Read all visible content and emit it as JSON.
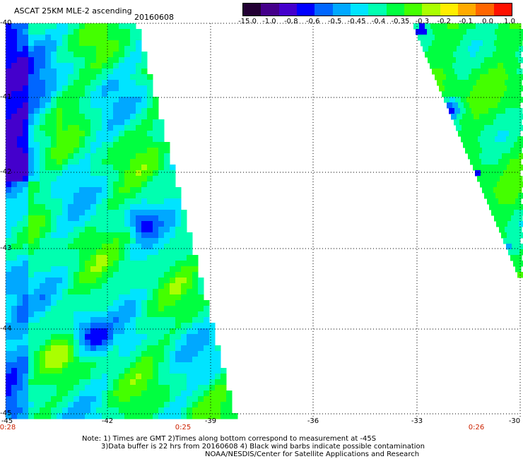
{
  "header": {
    "title": "ASCAT 25KM MLE-2 ascending",
    "date": "20160608"
  },
  "colorbar": {
    "labels": [
      "-15.0",
      "-1.0",
      "-0.8",
      "-0.6",
      "-0.5",
      "-0.45",
      "-0.4",
      "-0.35",
      "-0.3",
      "-0.2",
      "-0.1",
      "0.0",
      "1.0"
    ],
    "colors": [
      "#220033",
      "#44008a",
      "#4400cc",
      "#0000ff",
      "#0066ff",
      "#00a8ff",
      "#00e4ff",
      "#00ffb0",
      "#00ff40",
      "#44ff00",
      "#aaff00",
      "#ffee00",
      "#ffaa00",
      "#ff6600",
      "#ff1100"
    ]
  },
  "map": {
    "lat_labels": [
      "-40",
      "-41",
      "-42",
      "-43",
      "-44",
      "-45"
    ],
    "lat_values": [
      -40,
      -41,
      -42,
      -43,
      -44,
      -45
    ],
    "lon_labels": [
      "-45",
      "-42",
      "-39",
      "-36",
      "-33",
      "-30"
    ],
    "lon_values": [
      -45,
      -42,
      -39,
      -36,
      -33,
      -30
    ],
    "time_labels": [
      "0:28",
      "0:25",
      "0:26"
    ],
    "time_lons": [
      -45,
      -40.5,
      -31.5
    ],
    "lat_range": [
      -45,
      -40
    ],
    "lon_range": [
      -45,
      -30
    ]
  },
  "notes": {
    "line1": "Note: 1) Times are GMT 2)Times along bottom correspond to measurement at -45S",
    "line2": "3)Data buffer is 22 hrs from 20160608 4) Black wind barbs indicate possible contamination",
    "line3": "NOAA/NESDIS/Center for Satellite Applications and Research"
  }
}
